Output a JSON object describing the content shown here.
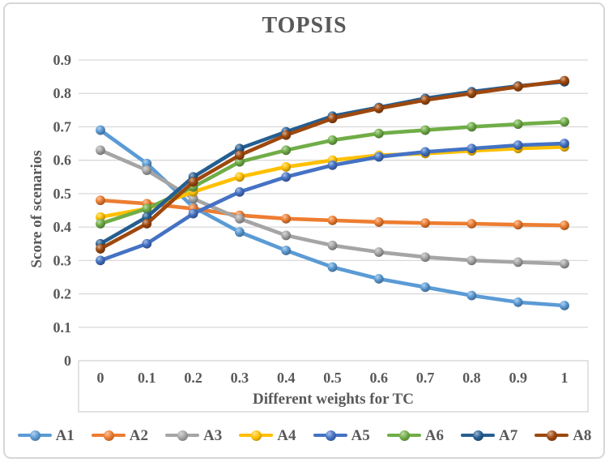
{
  "title": "TOPSIS",
  "colors": {
    "text": "#595959",
    "grid": "#d9d9d9",
    "axis_box": "#d9d9d9",
    "frame_border": "#d7d7d7",
    "background": "#ffffff"
  },
  "chart_data": {
    "type": "line",
    "title": "TOPSIS",
    "xlabel": "Different weights for TC",
    "ylabel": "Score of scenarios",
    "x": [
      0,
      0.1,
      0.2,
      0.3,
      0.4,
      0.5,
      0.6,
      0.7,
      0.8,
      0.9,
      1
    ],
    "x_tick_labels": [
      "0",
      "0.1",
      "0.2",
      "0.3",
      "0.4",
      "0.5",
      "0.6",
      "0.7",
      "0.8",
      "0.9",
      "1"
    ],
    "y_tick_labels": [
      "0",
      "0.1",
      "0.2",
      "0.3",
      "0.4",
      "0.5",
      "0.6",
      "0.7",
      "0.8",
      "0.9"
    ],
    "ylim": [
      0,
      0.9
    ],
    "y_step": 0.1,
    "grid": true,
    "legend_position": "bottom",
    "marker_style": "3d-sphere",
    "series": [
      {
        "name": "A1",
        "color": "#5B9BD5",
        "values": [
          0.69,
          0.59,
          0.46,
          0.385,
          0.33,
          0.28,
          0.245,
          0.22,
          0.195,
          0.175,
          0.165
        ]
      },
      {
        "name": "A2",
        "color": "#ED7D31",
        "values": [
          0.48,
          0.47,
          0.455,
          0.435,
          0.425,
          0.42,
          0.415,
          0.412,
          0.41,
          0.407,
          0.405
        ]
      },
      {
        "name": "A3",
        "color": "#A5A5A5",
        "values": [
          0.63,
          0.57,
          0.485,
          0.425,
          0.375,
          0.345,
          0.325,
          0.31,
          0.3,
          0.295,
          0.29
        ]
      },
      {
        "name": "A4",
        "color": "#FFC000",
        "values": [
          0.43,
          0.455,
          0.505,
          0.55,
          0.58,
          0.6,
          0.615,
          0.62,
          0.628,
          0.635,
          0.64
        ]
      },
      {
        "name": "A5",
        "color": "#4472C4",
        "values": [
          0.3,
          0.35,
          0.44,
          0.505,
          0.55,
          0.585,
          0.61,
          0.625,
          0.635,
          0.645,
          0.65
        ]
      },
      {
        "name": "A6",
        "color": "#70AD47",
        "values": [
          0.41,
          0.455,
          0.52,
          0.595,
          0.63,
          0.66,
          0.68,
          0.69,
          0.7,
          0.708,
          0.715
        ]
      },
      {
        "name": "A7",
        "color": "#255E91",
        "values": [
          0.35,
          0.43,
          0.55,
          0.635,
          0.685,
          0.732,
          0.758,
          0.785,
          0.805,
          0.822,
          0.835
        ]
      },
      {
        "name": "A8",
        "color": "#9E480E",
        "values": [
          0.335,
          0.41,
          0.535,
          0.615,
          0.675,
          0.725,
          0.755,
          0.78,
          0.8,
          0.82,
          0.838
        ]
      }
    ]
  }
}
